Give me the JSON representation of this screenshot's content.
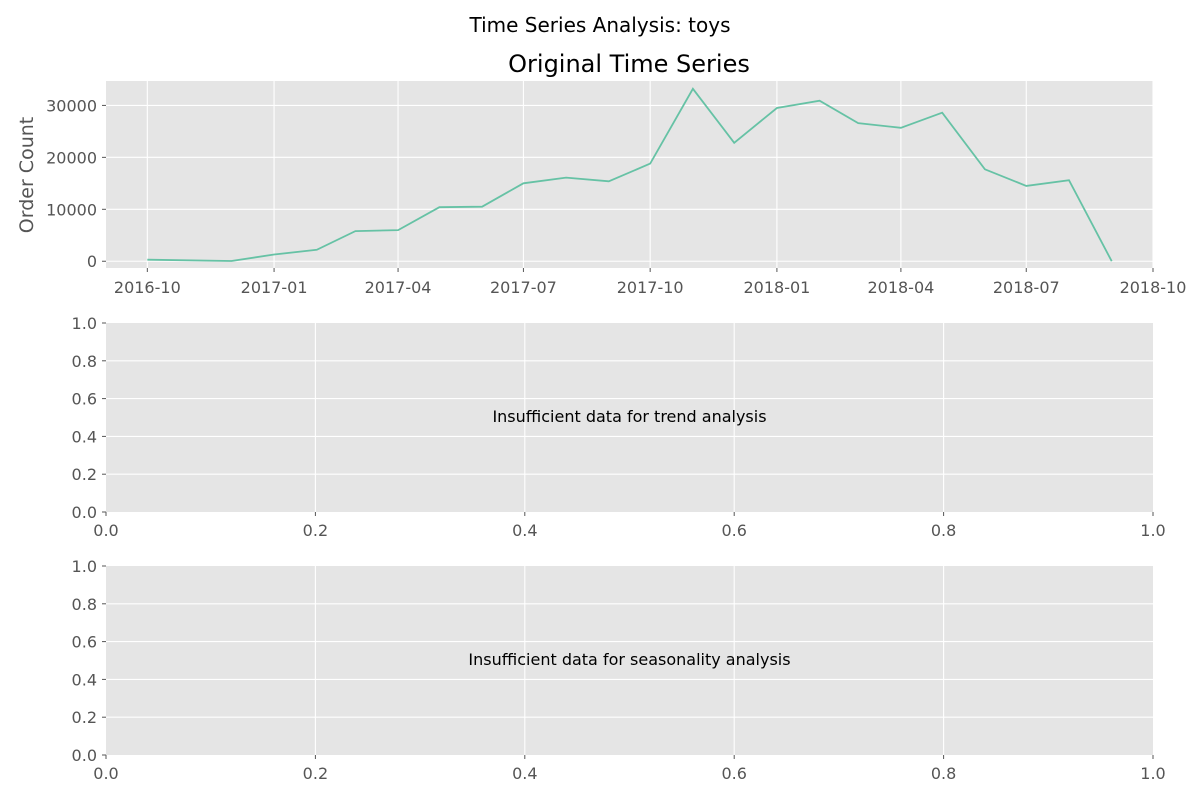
{
  "figure": {
    "suptitle": "Time Series Analysis: toys",
    "line_color": "#66c2a5",
    "panel_background": "#e5e5e5"
  },
  "chart_data": [
    {
      "type": "line",
      "title": "Original Time Series",
      "xlabel": "",
      "ylabel": "Order Count",
      "x_axis_type": "date",
      "grid": true,
      "x": [
        "2016-10-01",
        "2016-12-01",
        "2017-01-01",
        "2017-02-01",
        "2017-03-01",
        "2017-04-01",
        "2017-05-01",
        "2017-06-01",
        "2017-07-01",
        "2017-08-01",
        "2017-09-01",
        "2017-10-01",
        "2017-11-01",
        "2017-12-01",
        "2018-01-01",
        "2018-02-01",
        "2018-03-01",
        "2018-04-01",
        "2018-05-01",
        "2018-06-01",
        "2018-07-01",
        "2018-08-01",
        "2018-09-01"
      ],
      "values": [
        300,
        50,
        1300,
        2200,
        5800,
        6000,
        10400,
        10500,
        15000,
        16100,
        15400,
        18800,
        33200,
        22800,
        29500,
        30900,
        26600,
        25700,
        28600,
        17700,
        14500,
        15600,
        0
      ],
      "xlim": [
        "2016-09-01",
        "2018-10-01"
      ],
      "ylim": [
        -1300,
        34700
      ],
      "xticks": [
        "2016-10-01",
        "2017-01-01",
        "2017-04-01",
        "2017-07-01",
        "2017-10-01",
        "2018-01-01",
        "2018-04-01",
        "2018-07-01",
        "2018-10-01"
      ],
      "xtick_labels": [
        "2016-10",
        "2017-01",
        "2017-04",
        "2017-07",
        "2017-10",
        "2018-01",
        "2018-04",
        "2018-07",
        "2018-10"
      ],
      "yticks": [
        0,
        10000,
        20000,
        30000
      ],
      "ytick_labels": [
        "0",
        "10000",
        "20000",
        "30000"
      ]
    },
    {
      "type": "line",
      "title": "",
      "xlabel": "",
      "ylabel": "",
      "xlim": [
        0,
        1
      ],
      "ylim": [
        0,
        1
      ],
      "grid": true,
      "series": [],
      "annotation": "Insufficient data for trend analysis",
      "xtick_labels": [
        "0.0",
        "0.2",
        "0.4",
        "0.6",
        "0.8",
        "1.0"
      ],
      "ytick_labels": [
        "0.0",
        "0.2",
        "0.4",
        "0.6",
        "0.8",
        "1.0"
      ]
    },
    {
      "type": "line",
      "title": "",
      "xlabel": "",
      "ylabel": "",
      "xlim": [
        0,
        1
      ],
      "ylim": [
        0,
        1
      ],
      "grid": true,
      "series": [],
      "annotation": "Insufficient data for seasonality analysis",
      "xtick_labels": [
        "0.0",
        "0.2",
        "0.4",
        "0.6",
        "0.8",
        "1.0"
      ],
      "ytick_labels": [
        "0.0",
        "0.2",
        "0.4",
        "0.6",
        "0.8",
        "1.0"
      ]
    }
  ]
}
